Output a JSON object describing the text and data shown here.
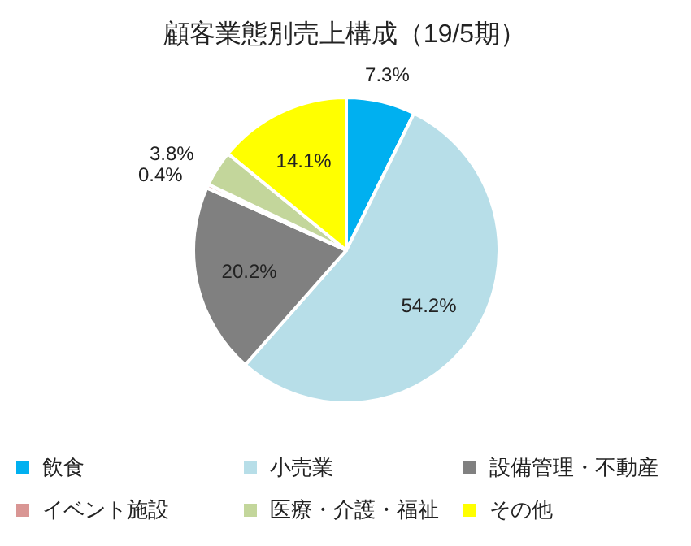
{
  "chart_data": {
    "type": "pie",
    "title": "顧客業態別売上構成（19/5期）",
    "categories": [
      "飲食",
      "小売業",
      "設備管理・不動産",
      "イベント施設",
      "医療・介護・福祉",
      "その他"
    ],
    "values": [
      7.3,
      54.2,
      20.2,
      0.4,
      3.8,
      14.1
    ],
    "colors": [
      "#00b0f0",
      "#b7dee8",
      "#808080",
      "#d99694",
      "#c3d69b",
      "#ffff00"
    ],
    "value_labels": [
      "7.3%",
      "54.2%",
      "20.2%",
      "0.4%",
      "3.8%",
      "14.1%"
    ],
    "legend": "bottom"
  }
}
